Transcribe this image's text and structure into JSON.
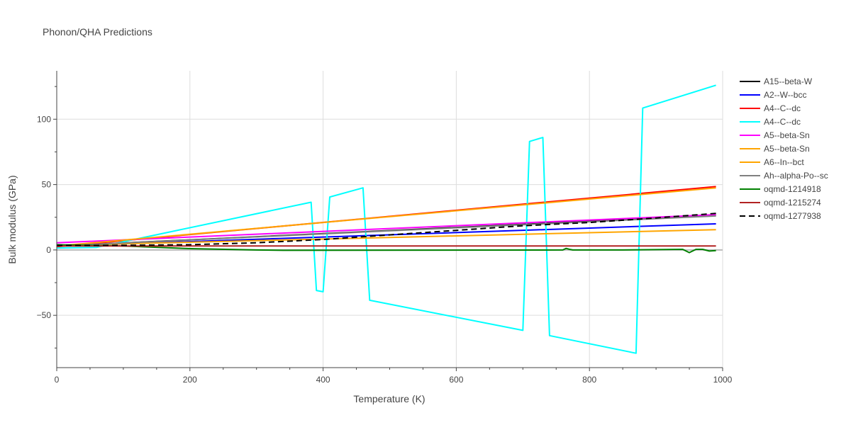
{
  "chart_data": {
    "type": "line",
    "title": "Phonon/QHA Predictions",
    "xlabel": "Temperature (K)",
    "ylabel": "Bulk modulus (GPa)",
    "xlim": [
      0,
      1000
    ],
    "ylim": [
      -90,
      137
    ],
    "x_ticks": [
      0,
      200,
      400,
      600,
      800,
      1000
    ],
    "y_ticks": [
      -50,
      0,
      50,
      100
    ],
    "x_tick_labels": [
      "0",
      "200",
      "400",
      "600",
      "800",
      "1000"
    ],
    "y_tick_labels": [
      "−50",
      "0",
      "50",
      "100"
    ],
    "grid": true,
    "legend_position": "right",
    "series": [
      {
        "name": "A15--beta-W",
        "color": "#000000",
        "dash": "solid",
        "x": [
          0,
          990
        ],
        "y": [
          3.0,
          26.5
        ]
      },
      {
        "name": "A2--W--bcc",
        "color": "#0000ff",
        "dash": "solid",
        "x": [
          0,
          990
        ],
        "y": [
          3.0,
          20.0
        ]
      },
      {
        "name": "A4--C--dc",
        "color": "#ff0000",
        "dash": "solid",
        "x": [
          0,
          990
        ],
        "y": [
          2.5,
          48.5
        ]
      },
      {
        "name": "A4--C--dc",
        "color": "#00ffff",
        "dash": "solid",
        "x": [
          0,
          60,
          382,
          390,
          400,
          410,
          460,
          470,
          700,
          710,
          730,
          740,
          870,
          880,
          990
        ],
        "y": [
          1.5,
          2.0,
          36.5,
          -31.0,
          -32.0,
          40.5,
          47.5,
          -38.5,
          -61.5,
          83.0,
          86.0,
          -65.5,
          -79.0,
          108.5,
          126.0
        ]
      },
      {
        "name": "A5--beta-Sn",
        "color": "#ff00ff",
        "dash": "solid",
        "x": [
          0,
          990
        ],
        "y": [
          5.5,
          27.0
        ]
      },
      {
        "name": "A5--beta-Sn",
        "color": "#ffa500",
        "dash": "solid",
        "x": [
          0,
          990
        ],
        "y": [
          3.5,
          15.5
        ]
      },
      {
        "name": "A6--In--bct",
        "color": "#ffa500",
        "dash": "solid",
        "x": [
          0,
          990
        ],
        "y": [
          3.0,
          47.5
        ]
      },
      {
        "name": "Ah--alpha-Po--sc",
        "color": "#808080",
        "dash": "solid",
        "x": [
          0,
          990
        ],
        "y": [
          3.0,
          26.0
        ]
      },
      {
        "name": "oqmd-1214918",
        "color": "#008000",
        "dash": "solid",
        "x": [
          0,
          100,
          200,
          300,
          340,
          760,
          765,
          770,
          775,
          850,
          940,
          950,
          960,
          970,
          980,
          990
        ],
        "y": [
          4.0,
          3.0,
          1.0,
          0.0,
          -0.3,
          0.0,
          1.2,
          0.5,
          0.0,
          0.0,
          0.5,
          -2.0,
          0.5,
          0.5,
          -0.8,
          -0.5
        ]
      },
      {
        "name": "oqmd-1215274",
        "color": "#b22222",
        "dash": "solid",
        "x": [
          0,
          990
        ],
        "y": [
          3.0,
          3.0
        ]
      },
      {
        "name": "oqmd-1277938",
        "color": "#000000",
        "dash": "dash",
        "x": [
          0,
          100,
          200,
          300,
          400,
          500,
          600,
          700,
          800,
          900,
          990
        ],
        "y": [
          3.5,
          3.5,
          4.0,
          5.5,
          8.0,
          11.5,
          15.0,
          18.5,
          21.0,
          24.5,
          28.0
        ]
      }
    ]
  }
}
